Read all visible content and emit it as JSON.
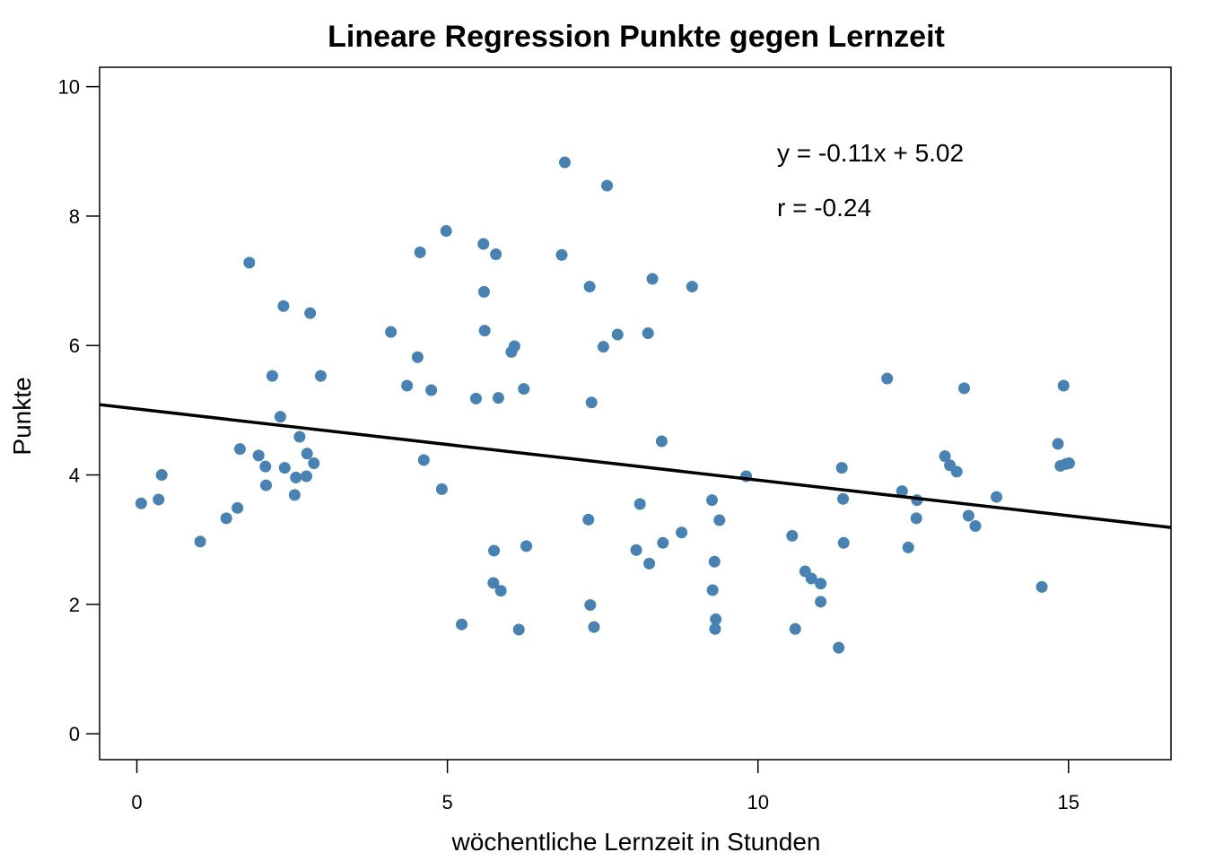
{
  "chart_data": {
    "type": "scatter",
    "title": "Lineare Regression Punkte gegen Lernzeit",
    "xlabel": "wöchentliche Lernzeit in Stunden",
    "ylabel": "Punkte",
    "xlim": [
      -0.6,
      16.65
    ],
    "ylim": [
      -0.4,
      10.3
    ],
    "xticks": [
      0,
      5,
      10,
      15
    ],
    "yticks": [
      0,
      2,
      4,
      6,
      8,
      10
    ],
    "grid": false,
    "point_color": "#4682B4",
    "line_color": "#000000",
    "regression": {
      "slope": -0.11,
      "intercept": 5.02
    },
    "annotations": [
      "y = -0.11x + 5.02",
      "r = -0.24"
    ],
    "points": [
      [
        0.07,
        3.56
      ],
      [
        0.35,
        3.62
      ],
      [
        0.4,
        4.0
      ],
      [
        1.02,
        2.97
      ],
      [
        1.44,
        3.33
      ],
      [
        1.62,
        3.49
      ],
      [
        1.66,
        4.4
      ],
      [
        1.81,
        7.28
      ],
      [
        1.96,
        4.3
      ],
      [
        2.07,
        4.13
      ],
      [
        2.08,
        3.84
      ],
      [
        2.18,
        5.53
      ],
      [
        2.31,
        4.9
      ],
      [
        2.36,
        6.61
      ],
      [
        2.38,
        4.11
      ],
      [
        2.54,
        3.69
      ],
      [
        2.56,
        3.96
      ],
      [
        2.62,
        4.59
      ],
      [
        2.73,
        3.98
      ],
      [
        2.74,
        4.33
      ],
      [
        2.79,
        6.5
      ],
      [
        2.85,
        4.18
      ],
      [
        2.96,
        5.53
      ],
      [
        4.09,
        6.21
      ],
      [
        4.35,
        5.38
      ],
      [
        4.52,
        5.82
      ],
      [
        4.56,
        7.44
      ],
      [
        4.62,
        4.23
      ],
      [
        4.74,
        5.31
      ],
      [
        4.91,
        3.78
      ],
      [
        4.98,
        7.77
      ],
      [
        5.23,
        1.69
      ],
      [
        5.46,
        5.18
      ],
      [
        5.58,
        7.57
      ],
      [
        5.59,
        6.83
      ],
      [
        5.6,
        6.23
      ],
      [
        5.74,
        2.33
      ],
      [
        5.75,
        2.83
      ],
      [
        5.78,
        7.41
      ],
      [
        5.82,
        5.19
      ],
      [
        5.86,
        2.21
      ],
      [
        6.03,
        5.9
      ],
      [
        6.08,
        5.99
      ],
      [
        6.15,
        1.61
      ],
      [
        6.23,
        5.33
      ],
      [
        6.27,
        2.9
      ],
      [
        6.84,
        7.4
      ],
      [
        6.89,
        8.83
      ],
      [
        7.27,
        3.31
      ],
      [
        7.29,
        6.91
      ],
      [
        7.3,
        1.99
      ],
      [
        7.32,
        5.12
      ],
      [
        7.36,
        1.65
      ],
      [
        7.51,
        5.98
      ],
      [
        7.57,
        8.47
      ],
      [
        7.74,
        6.17
      ],
      [
        8.04,
        2.84
      ],
      [
        8.1,
        3.55
      ],
      [
        8.23,
        6.19
      ],
      [
        8.25,
        2.63
      ],
      [
        8.3,
        7.03
      ],
      [
        8.45,
        4.52
      ],
      [
        8.47,
        2.95
      ],
      [
        8.77,
        3.11
      ],
      [
        8.94,
        6.91
      ],
      [
        9.26,
        3.61
      ],
      [
        9.27,
        2.22
      ],
      [
        9.3,
        2.66
      ],
      [
        9.31,
        1.62
      ],
      [
        9.32,
        1.77
      ],
      [
        9.38,
        3.3
      ],
      [
        9.81,
        3.98
      ],
      [
        10.55,
        3.06
      ],
      [
        10.6,
        1.62
      ],
      [
        10.76,
        2.51
      ],
      [
        10.86,
        2.4
      ],
      [
        11.01,
        2.32
      ],
      [
        11.01,
        2.04
      ],
      [
        11.3,
        1.33
      ],
      [
        11.35,
        4.11
      ],
      [
        11.37,
        3.63
      ],
      [
        11.38,
        2.95
      ],
      [
        12.08,
        5.49
      ],
      [
        12.32,
        3.75
      ],
      [
        12.42,
        2.88
      ],
      [
        12.55,
        3.33
      ],
      [
        12.56,
        3.61
      ],
      [
        13.01,
        4.29
      ],
      [
        13.09,
        4.15
      ],
      [
        13.2,
        4.05
      ],
      [
        13.32,
        5.34
      ],
      [
        13.39,
        3.37
      ],
      [
        13.5,
        3.21
      ],
      [
        13.84,
        3.66
      ],
      [
        14.57,
        2.27
      ],
      [
        14.83,
        4.48
      ],
      [
        14.87,
        4.14
      ],
      [
        14.92,
        5.38
      ],
      [
        14.96,
        4.17
      ],
      [
        15.01,
        4.18
      ]
    ]
  }
}
